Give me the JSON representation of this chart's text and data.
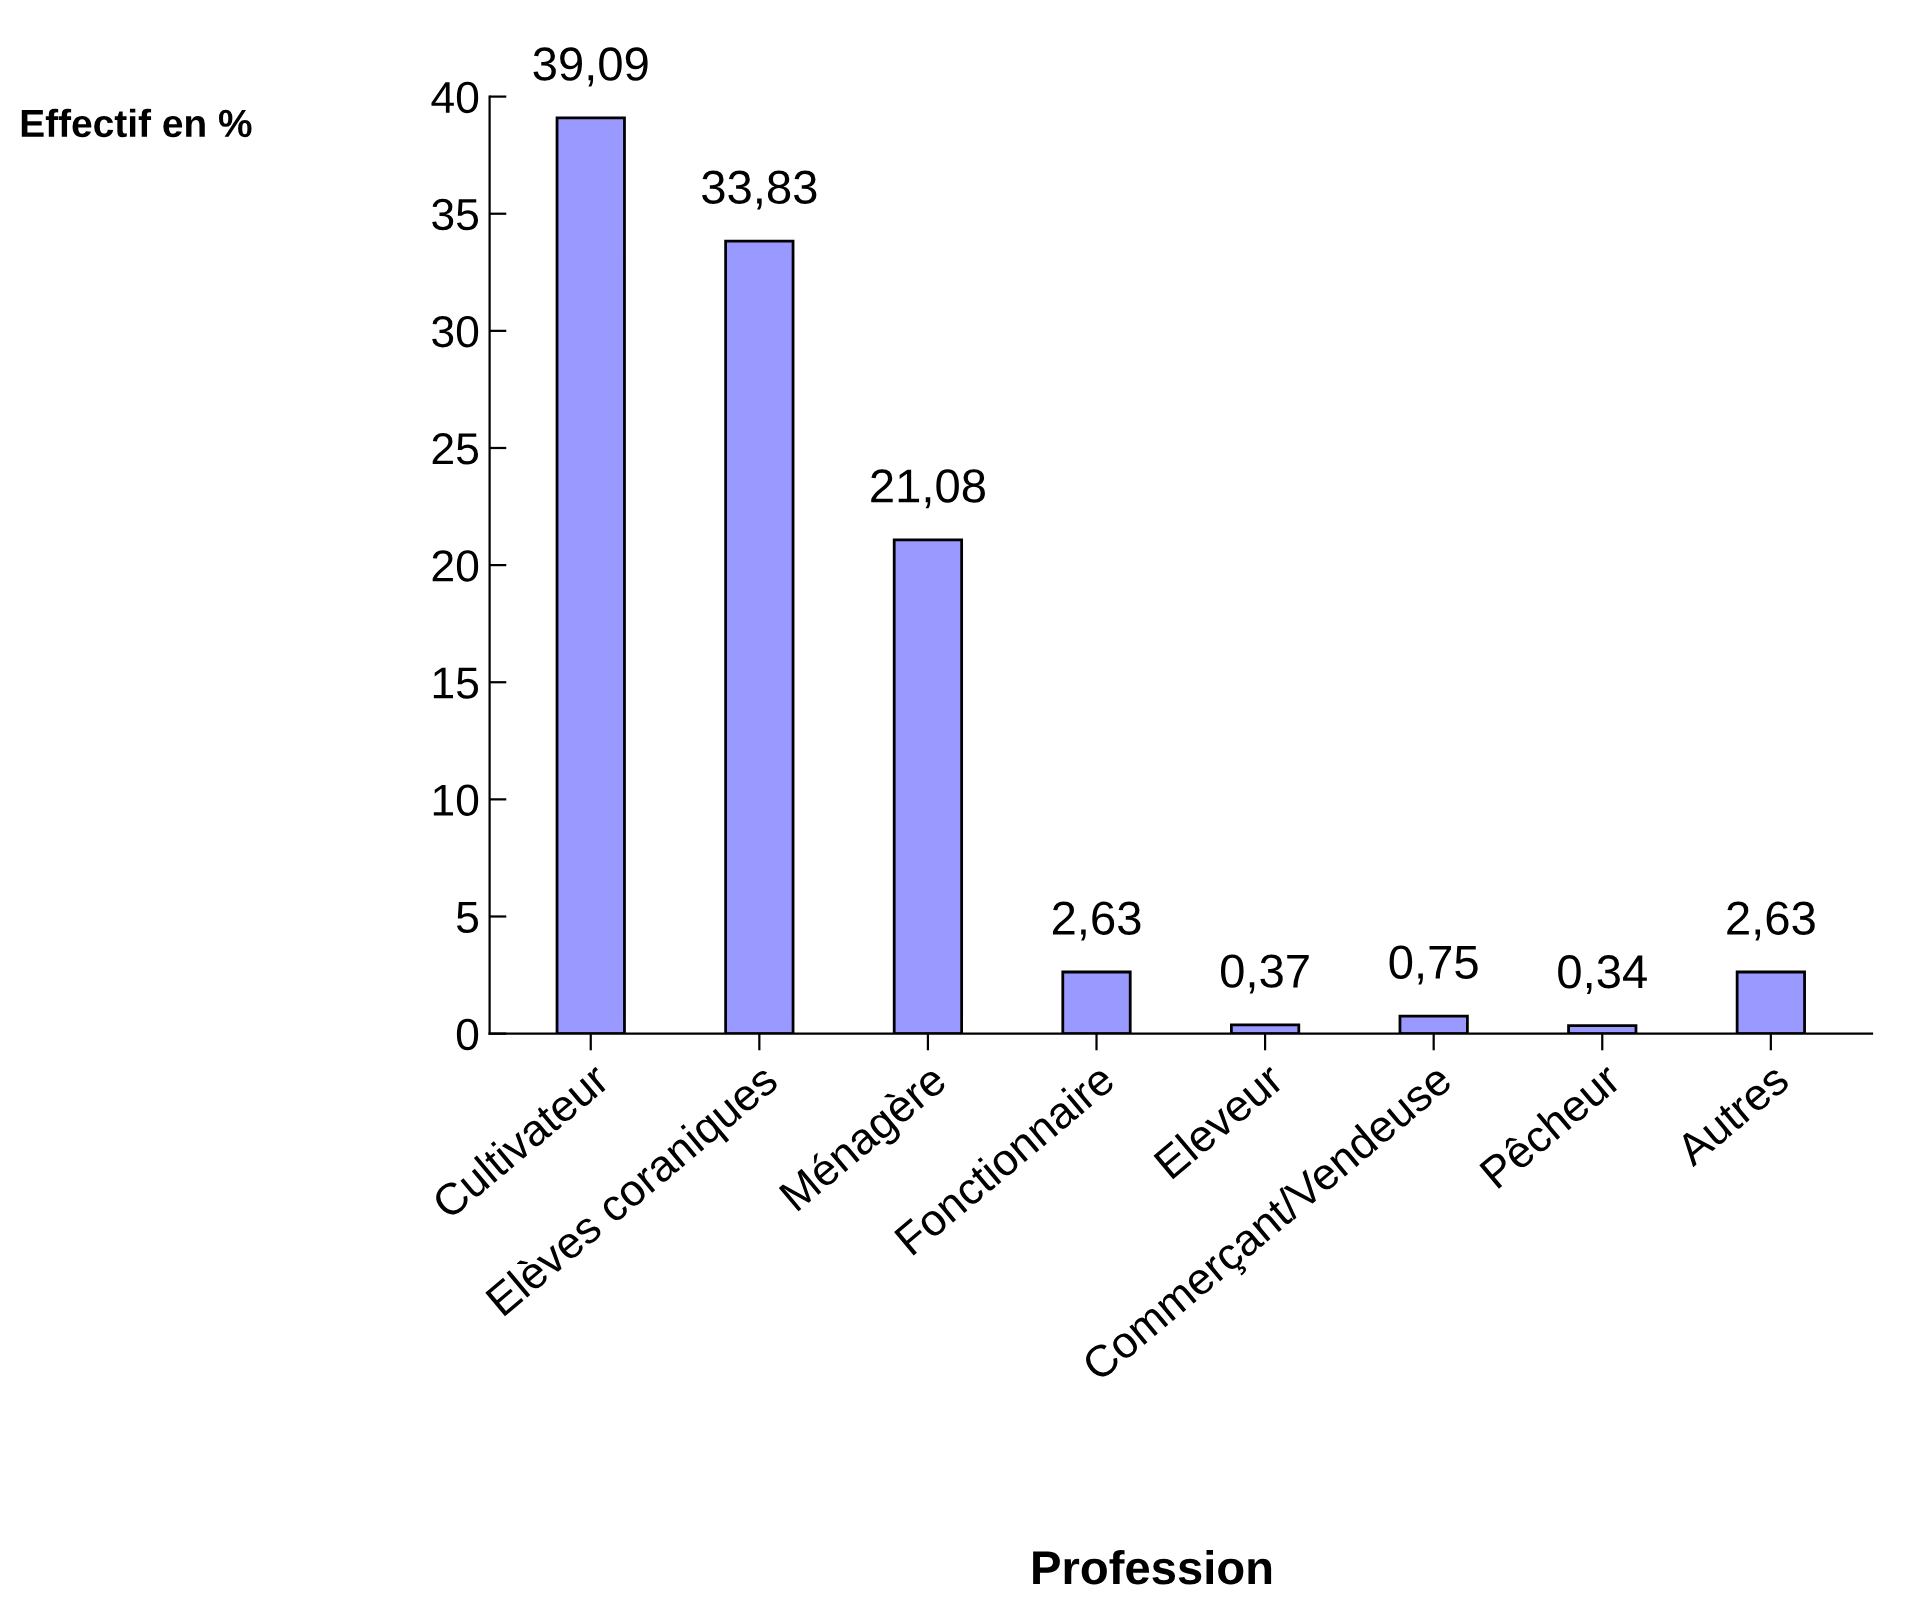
{
  "chart_data": {
    "type": "bar",
    "categories": [
      "Cultivateur",
      "Elèves coraniques",
      "Ménagère",
      "Fonctionnaire",
      "Eleveur",
      "Commerçant/Vendeuse",
      "Pêcheur",
      "Autres"
    ],
    "values": [
      39.09,
      33.83,
      21.08,
      2.63,
      0.37,
      0.75,
      0.34,
      2.63
    ],
    "value_labels": [
      "39,09",
      "33,83",
      "21,08",
      "2,63",
      "0,37",
      "0,75",
      "0,34",
      "2,63"
    ],
    "color": "#9999ff",
    "xlabel": "Profession",
    "ylabel": "Effectif en %",
    "ylim": [
      0,
      40
    ],
    "yticks": [
      0,
      5,
      10,
      15,
      20,
      25,
      30,
      35,
      40
    ],
    "grid": false
  }
}
